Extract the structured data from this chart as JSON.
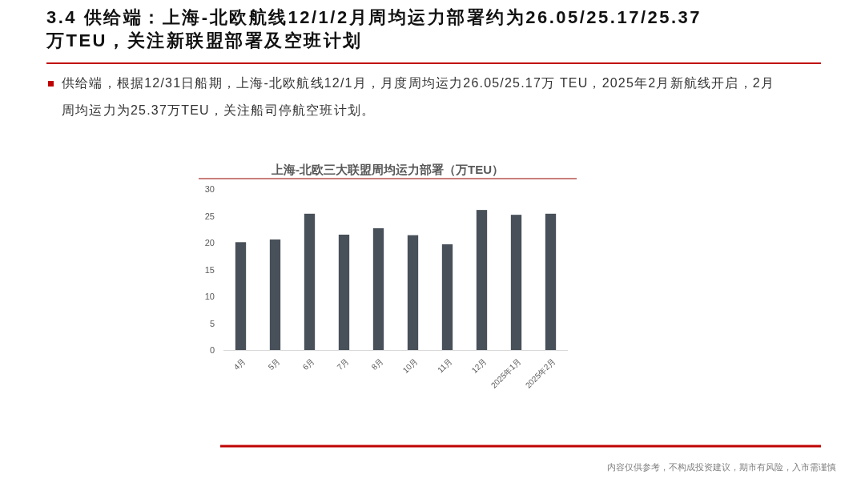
{
  "chart_data": {
    "type": "bar",
    "title": "上海-北欧三大联盟周均运力部署（万TEU）",
    "categories": [
      "4月",
      "5月",
      "6月",
      "7月",
      "8月",
      "10月",
      "11月",
      "12月",
      "2025年1月",
      "2025年2月"
    ],
    "values": [
      20.1,
      20.6,
      25.4,
      21.5,
      22.7,
      21.4,
      19.7,
      26.1,
      25.2,
      25.4
    ],
    "color": "#485059",
    "ylim": [
      0,
      30
    ],
    "yticks": [
      0,
      5,
      10,
      15,
      20,
      25,
      30
    ],
    "annotations": [
      "3.4 供给端：上海-北欧航线12/1/2月周均运力部署约为26.05/25.17/25.37万TEU，关注新联盟部署及空班计划",
      "供给端，根据12/31日船期，上海-北欧航线12/1月，月度周均运力26.05/25.17万 TEU，2025年2月新航线开启，2月周均运力为25.37万TEU，关注船司停航空班计划。",
      "内容仅供参考，不构成投资建议，期市有风险，入市需谨慎"
    ]
  }
}
